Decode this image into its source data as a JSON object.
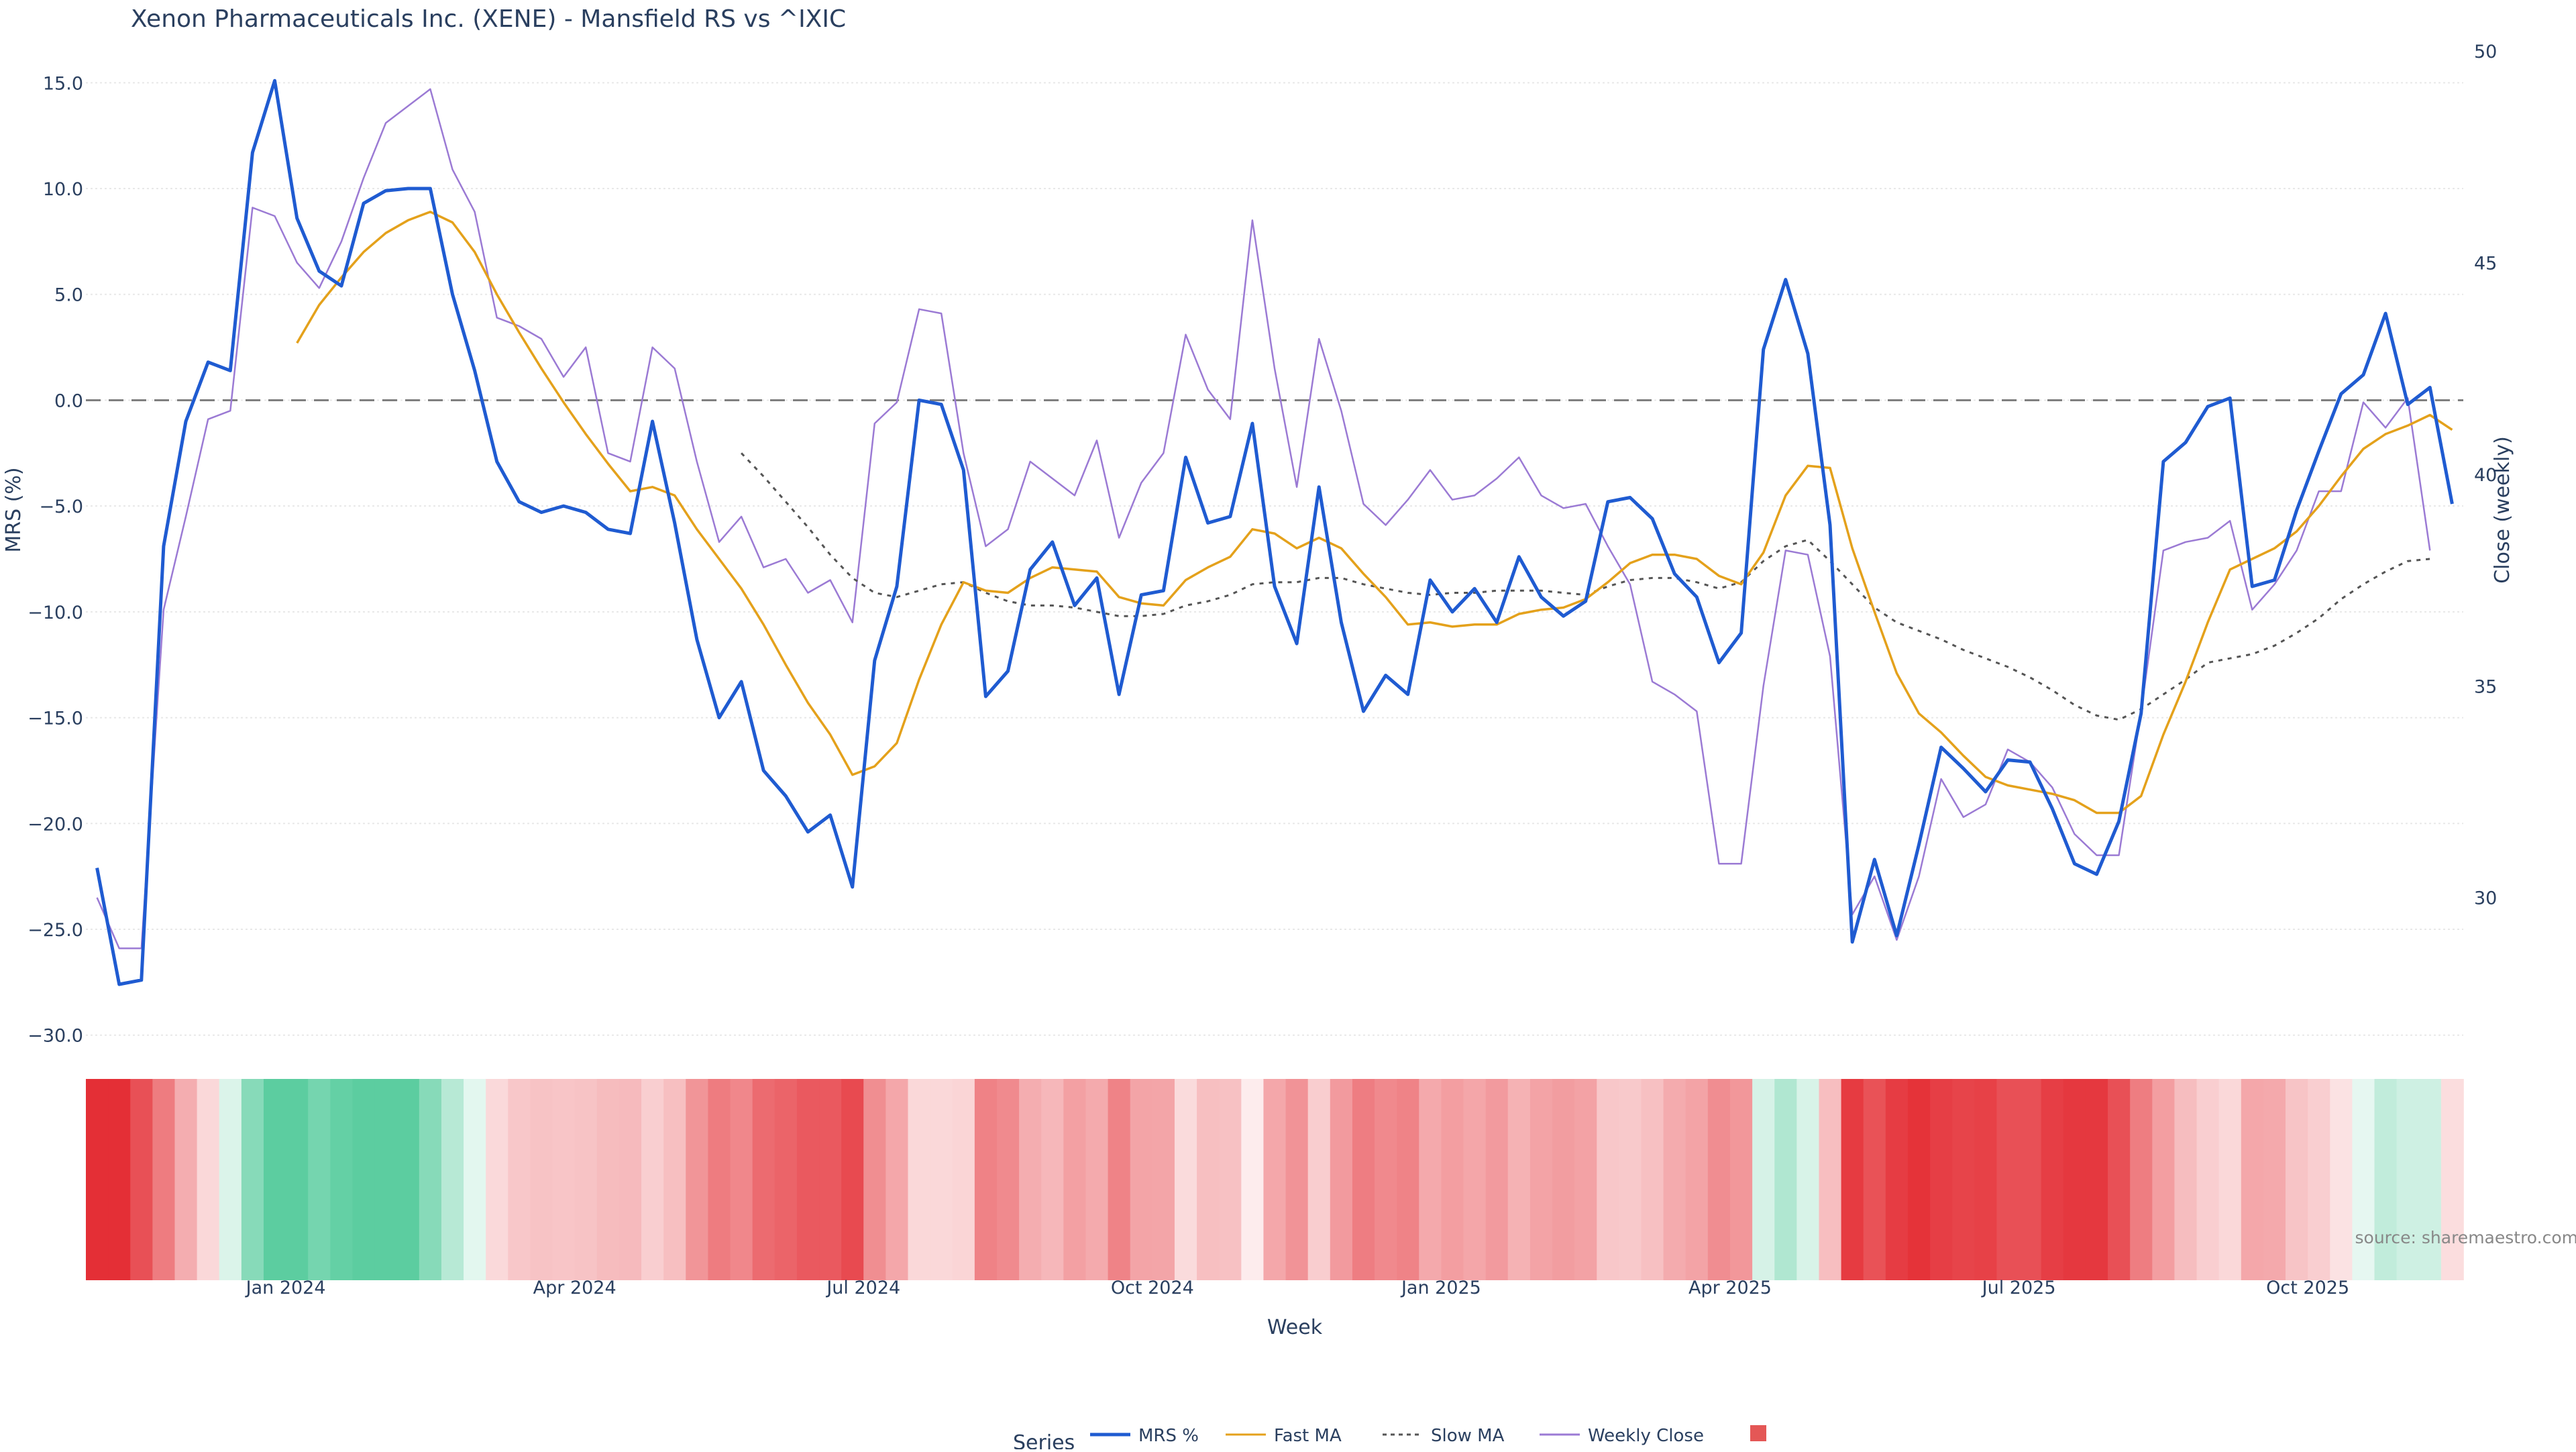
{
  "chart_data": {
    "type": "line",
    "title": "Xenon Pharmaceuticals Inc. (XENE) - Mansfield RS vs ^IXIC",
    "xlabel": "Week",
    "ylabel_left": "MRS (%)",
    "ylabel_right": "Close (weekly)",
    "ylim_left": [
      -31.5,
      16.5
    ],
    "ylim_right": [
      26,
      50
    ],
    "yticks_left": [
      15,
      10,
      5,
      0,
      -5,
      -10,
      -15,
      -20,
      -25,
      -30
    ],
    "ytick_labels_left": [
      "15.0",
      "10.0",
      "5.0",
      "0.0",
      "−5.0",
      "−10.0",
      "−15.0",
      "−20.0",
      "−25.0",
      "−30.0"
    ],
    "yticks_right": [
      50,
      45,
      40,
      35,
      30
    ],
    "ytick_labels_right": [
      "50",
      "45",
      "40",
      "35",
      "30"
    ],
    "x_tick_positions": [
      8.5,
      21.5,
      34.5,
      47.5,
      60.5,
      73.5,
      86.5,
      99.5
    ],
    "x_tick_labels": [
      "Jan 2024",
      "Apr 2024",
      "Jul 2024",
      "Oct 2024",
      "Jan 2025",
      "Apr 2025",
      "Jul 2025",
      "Oct 2025"
    ],
    "zero_line": 0,
    "source": "source: sharemaestro.com",
    "legend_title": "Series",
    "series": [
      {
        "name": "MRS %",
        "color": "#1f5bd1",
        "dash": "solid",
        "axis": "left",
        "values": [
          -22.1,
          -27.6,
          -27.4,
          -6.9,
          -1.0,
          1.8,
          1.4,
          11.7,
          15.1,
          8.6,
          6.1,
          5.4,
          9.3,
          9.9,
          10.0,
          10.0,
          5.0,
          1.4,
          -2.9,
          -4.8,
          -5.3,
          -5.0,
          -5.3,
          -6.1,
          -6.3,
          -1.0,
          -5.8,
          -11.3,
          -15.0,
          -13.3,
          -17.5,
          -18.7,
          -20.4,
          -19.6,
          -23.0,
          -12.3,
          -8.8,
          0.0,
          -0.2,
          -3.3,
          -14.0,
          -12.8,
          -8.0,
          -6.7,
          -9.7,
          -8.4,
          -13.9,
          -9.2,
          -9.0,
          -2.7,
          -5.8,
          -5.5,
          -1.1,
          -8.8,
          -11.5,
          -4.1,
          -10.5,
          -14.7,
          -13.0,
          -13.9,
          -8.5,
          -10.0,
          -8.9,
          -10.5,
          -7.4,
          -9.3,
          -10.2,
          -9.5,
          -4.8,
          -4.6,
          -5.6,
          -8.2,
          -9.3,
          -12.4,
          -11.0,
          2.4,
          5.7,
          2.2,
          -5.9,
          -25.6,
          -21.7,
          -25.3,
          -21.0,
          -16.4,
          -17.4,
          -18.5,
          -17.0,
          -17.1,
          -19.3,
          -21.9,
          -22.4,
          -19.9,
          -14.8,
          -2.9,
          -2.0,
          -0.3,
          0.1,
          -8.8,
          -8.5,
          -5.2,
          -2.4,
          0.3,
          1.2,
          4.1,
          -0.2,
          0.6,
          -4.9
        ]
      },
      {
        "name": "Fast MA",
        "color": "#e4a11b",
        "dash": "solid",
        "axis": "left",
        "values": [
          null,
          null,
          null,
          null,
          null,
          null,
          null,
          null,
          null,
          2.7,
          4.5,
          5.8,
          7.0,
          7.9,
          8.5,
          8.9,
          8.4,
          7.0,
          5.0,
          3.2,
          1.5,
          -0.1,
          -1.6,
          -3.0,
          -4.3,
          -4.1,
          -4.5,
          -6.1,
          -7.5,
          -8.9,
          -10.6,
          -12.5,
          -14.3,
          -15.8,
          -17.7,
          -17.3,
          -16.2,
          -13.2,
          -10.6,
          -8.6,
          -9.0,
          -9.1,
          -8.4,
          -7.9,
          -8.0,
          -8.1,
          -9.3,
          -9.6,
          -9.7,
          -8.5,
          -7.9,
          -7.4,
          -6.1,
          -6.3,
          -7.0,
          -6.5,
          -7.0,
          -8.2,
          -9.3,
          -10.6,
          -10.5,
          -10.7,
          -10.6,
          -10.6,
          -10.1,
          -9.9,
          -9.8,
          -9.4,
          -8.6,
          -7.7,
          -7.3,
          -7.3,
          -7.5,
          -8.3,
          -8.7,
          -7.2,
          -4.5,
          -3.1,
          -3.2,
          -7.0,
          -10.0,
          -12.9,
          -14.8,
          -15.7,
          -16.8,
          -17.8,
          -18.2,
          -18.4,
          -18.6,
          -18.9,
          -19.5,
          -19.5,
          -18.7,
          -15.8,
          -13.3,
          -10.5,
          -8.0,
          -7.5,
          -7.0,
          -6.2,
          -5.0,
          -3.6,
          -2.3,
          -1.6,
          -1.2,
          -0.7,
          -1.4
        ]
      },
      {
        "name": "Slow MA",
        "color": "#555555",
        "dash": "dashed",
        "axis": "left",
        "values": [
          null,
          null,
          null,
          null,
          null,
          null,
          null,
          null,
          null,
          null,
          null,
          null,
          null,
          null,
          null,
          null,
          null,
          null,
          null,
          null,
          null,
          null,
          null,
          null,
          null,
          null,
          null,
          null,
          null,
          -2.5,
          -3.6,
          -4.8,
          -6.0,
          -7.3,
          -8.4,
          -9.1,
          -9.3,
          -9.0,
          -8.7,
          -8.6,
          -9.1,
          -9.5,
          -9.7,
          -9.7,
          -9.8,
          -10.0,
          -10.2,
          -10.2,
          -10.1,
          -9.7,
          -9.5,
          -9.2,
          -8.7,
          -8.6,
          -8.6,
          -8.4,
          -8.4,
          -8.7,
          -8.9,
          -9.1,
          -9.2,
          -9.1,
          -9.1,
          -9.0,
          -9.0,
          -9.0,
          -9.1,
          -9.2,
          -8.8,
          -8.5,
          -8.4,
          -8.4,
          -8.6,
          -8.9,
          -8.6,
          -7.6,
          -6.9,
          -6.6,
          -7.6,
          -8.7,
          -9.8,
          -10.5,
          -10.9,
          -11.3,
          -11.8,
          -12.2,
          -12.6,
          -13.1,
          -13.7,
          -14.4,
          -14.9,
          -15.1,
          -14.6,
          -13.9,
          -13.2,
          -12.4,
          -12.2,
          -12.0,
          -11.6,
          -11.0,
          -10.3,
          -9.4,
          -8.7,
          -8.1,
          -7.6,
          -7.5
        ]
      },
      {
        "name": "Weekly Close",
        "color": "#9b7ad4",
        "dash": "solid",
        "axis": "right",
        "values": [
          30.0,
          28.8,
          28.8,
          36.8,
          39.0,
          41.3,
          41.5,
          46.3,
          46.1,
          45.0,
          44.4,
          45.5,
          47.0,
          48.3,
          48.7,
          49.1,
          47.2,
          46.2,
          43.7,
          43.5,
          43.2,
          42.3,
          43.0,
          40.5,
          40.3,
          43.0,
          42.5,
          40.3,
          38.4,
          39.0,
          37.8,
          38.0,
          37.2,
          37.5,
          36.5,
          41.2,
          41.7,
          43.9,
          43.8,
          40.5,
          38.3,
          38.7,
          40.3,
          39.9,
          39.5,
          40.8,
          38.5,
          39.8,
          40.5,
          43.3,
          42.0,
          41.3,
          46.0,
          42.5,
          39.7,
          43.2,
          41.5,
          39.3,
          38.8,
          39.4,
          40.1,
          39.4,
          39.5,
          39.9,
          40.4,
          39.5,
          39.2,
          39.3,
          38.3,
          37.4,
          35.1,
          34.8,
          34.4,
          30.8,
          30.8,
          35.0,
          38.2,
          38.1,
          35.7,
          29.6,
          30.5,
          29.0,
          30.5,
          32.8,
          31.9,
          32.2,
          33.5,
          33.2,
          32.6,
          31.5,
          31.0,
          31.0,
          34.4,
          38.2,
          38.4,
          38.5,
          38.9,
          36.8,
          37.4,
          38.2,
          39.6,
          39.6,
          41.7,
          41.1,
          41.8,
          38.2
        ]
      },
      {
        "name": "",
        "color": "#e45756",
        "dash": "square",
        "axis": "heat",
        "values": []
      }
    ],
    "heatmap_values": [
      -27.6,
      -27.6,
      -22.0,
      -15.0,
      -8.0,
      -3.0,
      2.0,
      10.0,
      15.1,
      15.1,
      12.0,
      14.0,
      15.0,
      15.1,
      15.1,
      10.0,
      5.0,
      1.4,
      -2.9,
      -4.8,
      -5.3,
      -5.0,
      -5.3,
      -6.1,
      -6.3,
      -4.0,
      -5.8,
      -11.3,
      -15.0,
      -13.3,
      -17.5,
      -18.7,
      -20.4,
      -20.4,
      -23.0,
      -12.3,
      -8.8,
      -3.0,
      -3.0,
      -3.3,
      -14.0,
      -12.8,
      -8.0,
      -6.7,
      -9.7,
      -8.4,
      -13.9,
      -9.2,
      -9.0,
      -2.7,
      -5.8,
      -5.5,
      -1.1,
      -8.8,
      -11.5,
      -4.1,
      -10.5,
      -14.7,
      -13.0,
      -13.9,
      -8.5,
      -10.0,
      -8.9,
      -10.5,
      -7.4,
      -9.3,
      -10.2,
      -9.5,
      -4.8,
      -4.6,
      -5.6,
      -8.2,
      -9.3,
      -12.4,
      -11.0,
      2.4,
      5.7,
      2.2,
      -5.9,
      -25.6,
      -21.7,
      -25.3,
      -27.0,
      -25.0,
      -24.0,
      -24.5,
      -22.0,
      -22.0,
      -25.0,
      -26.0,
      -26.0,
      -22.0,
      -14.8,
      -10.0,
      -6.0,
      -4.0,
      -3.0,
      -8.8,
      -8.5,
      -5.2,
      -4.0,
      -2.0,
      1.2,
      4.1,
      3.0,
      3.0,
      -2.5
    ]
  }
}
